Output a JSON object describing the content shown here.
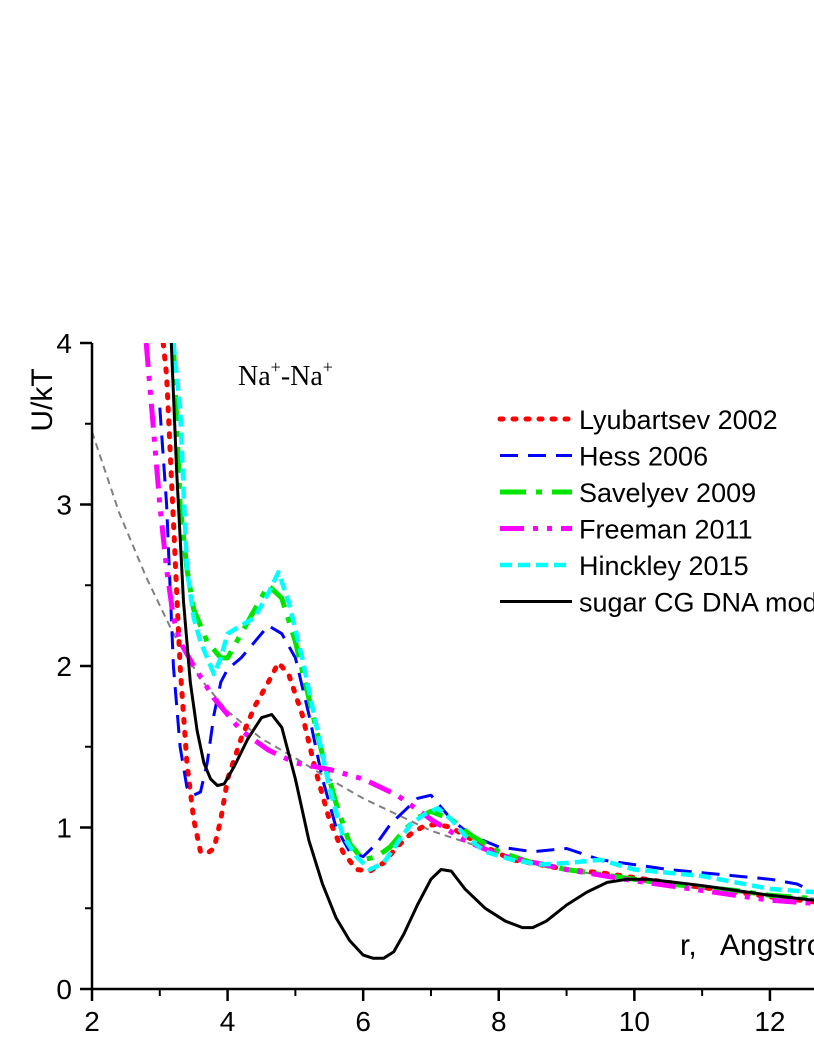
{
  "chart_data": {
    "type": "line",
    "ylabel": "U/kT",
    "xlabel": "r,   Angstrom",
    "annotation": {
      "base1": "Na",
      "sup1": "+",
      "dash": "-",
      "base2": "Na",
      "sup2": "+"
    },
    "xlim": [
      2,
      12.65
    ],
    "ylim": [
      0,
      4
    ],
    "x_ticks": [
      2,
      4,
      6,
      8,
      10,
      12
    ],
    "y_ticks": [
      0,
      1,
      2,
      3,
      4
    ],
    "grid": false,
    "legend_position": "top-right",
    "reference_curve": {
      "style": "thin gray dashed",
      "color": "#808080",
      "x": [
        2.0,
        2.4,
        2.8,
        3.2,
        3.6,
        4.0,
        4.5,
        5.0,
        5.5,
        6.0,
        7.0,
        8.0,
        9.0,
        10.0,
        11.0,
        12.0,
        12.65
      ],
      "y": [
        3.45,
        2.95,
        2.55,
        2.2,
        1.92,
        1.72,
        1.55,
        1.43,
        1.3,
        1.18,
        0.98,
        0.84,
        0.74,
        0.67,
        0.62,
        0.58,
        0.56
      ]
    },
    "series": [
      {
        "name": "Lyubartsev 2002",
        "color": "#ff0000",
        "style": "dotted",
        "x": [
          3.05,
          3.1,
          3.2,
          3.3,
          3.4,
          3.5,
          3.6,
          3.7,
          3.8,
          3.9,
          4.0,
          4.2,
          4.4,
          4.6,
          4.75,
          4.9,
          5.1,
          5.3,
          5.5,
          5.7,
          5.9,
          6.1,
          6.3,
          6.5,
          6.7,
          6.9,
          7.1,
          7.3,
          7.5,
          7.8,
          8.2,
          8.6,
          9.0,
          9.5,
          10.0,
          10.5,
          11.0,
          11.5,
          12.0,
          12.65
        ],
        "y": [
          4.0,
          3.8,
          2.9,
          2.0,
          1.4,
          1.05,
          0.85,
          0.84,
          0.87,
          1.05,
          1.3,
          1.55,
          1.75,
          1.9,
          2.02,
          1.95,
          1.7,
          1.35,
          1.05,
          0.85,
          0.74,
          0.73,
          0.78,
          0.88,
          0.96,
          1.01,
          1.02,
          1.0,
          0.95,
          0.88,
          0.8,
          0.77,
          0.74,
          0.72,
          0.69,
          0.66,
          0.63,
          0.6,
          0.57,
          0.54
        ]
      },
      {
        "name": "Hess 2006",
        "color": "#0000ff",
        "style": "dashed",
        "x": [
          3.0,
          3.1,
          3.2,
          3.3,
          3.4,
          3.5,
          3.6,
          3.7,
          3.8,
          3.9,
          4.0,
          4.2,
          4.4,
          4.6,
          4.8,
          5.0,
          5.2,
          5.4,
          5.6,
          5.8,
          6.0,
          6.2,
          6.4,
          6.6,
          6.8,
          7.0,
          7.3,
          7.6,
          8.0,
          8.5,
          9.0,
          9.5,
          10.0,
          10.5,
          11.0,
          11.5,
          12.0,
          12.4,
          12.65
        ],
        "y": [
          3.6,
          3.0,
          2.0,
          1.5,
          1.25,
          1.2,
          1.22,
          1.4,
          1.7,
          1.9,
          1.98,
          2.05,
          2.15,
          2.25,
          2.2,
          2.05,
          1.7,
          1.3,
          1.0,
          0.85,
          0.82,
          0.9,
          1.02,
          1.1,
          1.18,
          1.2,
          1.05,
          0.95,
          0.88,
          0.85,
          0.87,
          0.8,
          0.77,
          0.74,
          0.72,
          0.7,
          0.68,
          0.65,
          0.6
        ]
      },
      {
        "name": "Savelyev 2009",
        "color": "#00e600",
        "style": "dash-dot",
        "x": [
          3.2,
          3.3,
          3.4,
          3.5,
          3.6,
          3.7,
          3.8,
          3.9,
          4.0,
          4.2,
          4.4,
          4.6,
          4.8,
          5.0,
          5.2,
          5.4,
          5.6,
          5.8,
          6.0,
          6.2,
          6.4,
          6.6,
          6.8,
          7.0,
          7.3,
          7.6,
          8.0,
          8.5,
          9.0,
          9.5,
          10.0,
          10.5,
          11.0,
          11.5,
          12.0,
          12.65
        ],
        "y": [
          4.0,
          3.0,
          2.6,
          2.35,
          2.25,
          2.15,
          2.1,
          2.05,
          2.05,
          2.2,
          2.35,
          2.5,
          2.42,
          2.15,
          1.8,
          1.45,
          1.15,
          0.9,
          0.8,
          0.82,
          0.88,
          0.98,
          1.06,
          1.1,
          1.05,
          0.95,
          0.85,
          0.78,
          0.74,
          0.71,
          0.68,
          0.65,
          0.63,
          0.61,
          0.58,
          0.56
        ]
      },
      {
        "name": "Freeman 2011",
        "color": "#ff00ff",
        "style": "dash-dot-dot",
        "x": [
          2.8,
          2.9,
          3.0,
          3.1,
          3.2,
          3.3,
          3.5,
          3.8,
          4.2,
          4.6,
          5.0,
          5.5,
          6.0,
          6.5,
          7.0,
          7.5,
          8.0,
          9.0,
          10.0,
          11.0,
          12.0,
          12.65
        ],
        "y": [
          4.0,
          3.5,
          3.0,
          2.6,
          2.3,
          2.15,
          2.0,
          1.8,
          1.6,
          1.48,
          1.4,
          1.36,
          1.3,
          1.2,
          1.05,
          0.92,
          0.83,
          0.74,
          0.67,
          0.61,
          0.55,
          0.53
        ]
      },
      {
        "name": "Hinckley 2015",
        "color": "#00ffff",
        "style": "short-dashed",
        "x": [
          3.2,
          3.3,
          3.4,
          3.5,
          3.6,
          3.7,
          3.8,
          3.9,
          4.0,
          4.2,
          4.4,
          4.6,
          4.75,
          4.9,
          5.1,
          5.3,
          5.5,
          5.7,
          5.9,
          6.1,
          6.3,
          6.5,
          6.7,
          6.9,
          7.1,
          7.3,
          7.5,
          7.8,
          8.2,
          8.6,
          9.0,
          9.5,
          10.0,
          10.5,
          11.0,
          11.5,
          12.0,
          12.65
        ],
        "y": [
          4.0,
          3.6,
          2.6,
          2.3,
          2.15,
          2.05,
          1.95,
          2.05,
          2.2,
          2.25,
          2.3,
          2.45,
          2.58,
          2.4,
          2.05,
          1.65,
          1.25,
          0.95,
          0.82,
          0.74,
          0.78,
          0.9,
          1.02,
          1.08,
          1.12,
          1.05,
          0.95,
          0.85,
          0.8,
          0.77,
          0.78,
          0.8,
          0.74,
          0.72,
          0.7,
          0.66,
          0.62,
          0.6
        ]
      },
      {
        "name": "sugar CG DNA model",
        "color": "#000000",
        "style": "solid",
        "x": [
          3.17,
          3.25,
          3.35,
          3.45,
          3.55,
          3.65,
          3.75,
          3.85,
          3.95,
          4.1,
          4.3,
          4.5,
          4.65,
          4.8,
          5.0,
          5.2,
          5.4,
          5.6,
          5.8,
          6.0,
          6.15,
          6.3,
          6.45,
          6.6,
          6.8,
          7.0,
          7.15,
          7.3,
          7.5,
          7.8,
          8.1,
          8.35,
          8.5,
          8.7,
          9.0,
          9.3,
          9.6,
          9.9,
          10.2,
          10.6,
          11.0,
          11.5,
          12.0,
          12.65
        ],
        "y": [
          4.0,
          3.2,
          2.4,
          1.9,
          1.6,
          1.4,
          1.3,
          1.26,
          1.27,
          1.38,
          1.55,
          1.68,
          1.7,
          1.62,
          1.3,
          0.92,
          0.65,
          0.44,
          0.3,
          0.21,
          0.19,
          0.19,
          0.23,
          0.34,
          0.52,
          0.68,
          0.74,
          0.73,
          0.62,
          0.5,
          0.42,
          0.38,
          0.38,
          0.42,
          0.52,
          0.6,
          0.66,
          0.68,
          0.68,
          0.66,
          0.64,
          0.61,
          0.58,
          0.55
        ]
      }
    ]
  }
}
